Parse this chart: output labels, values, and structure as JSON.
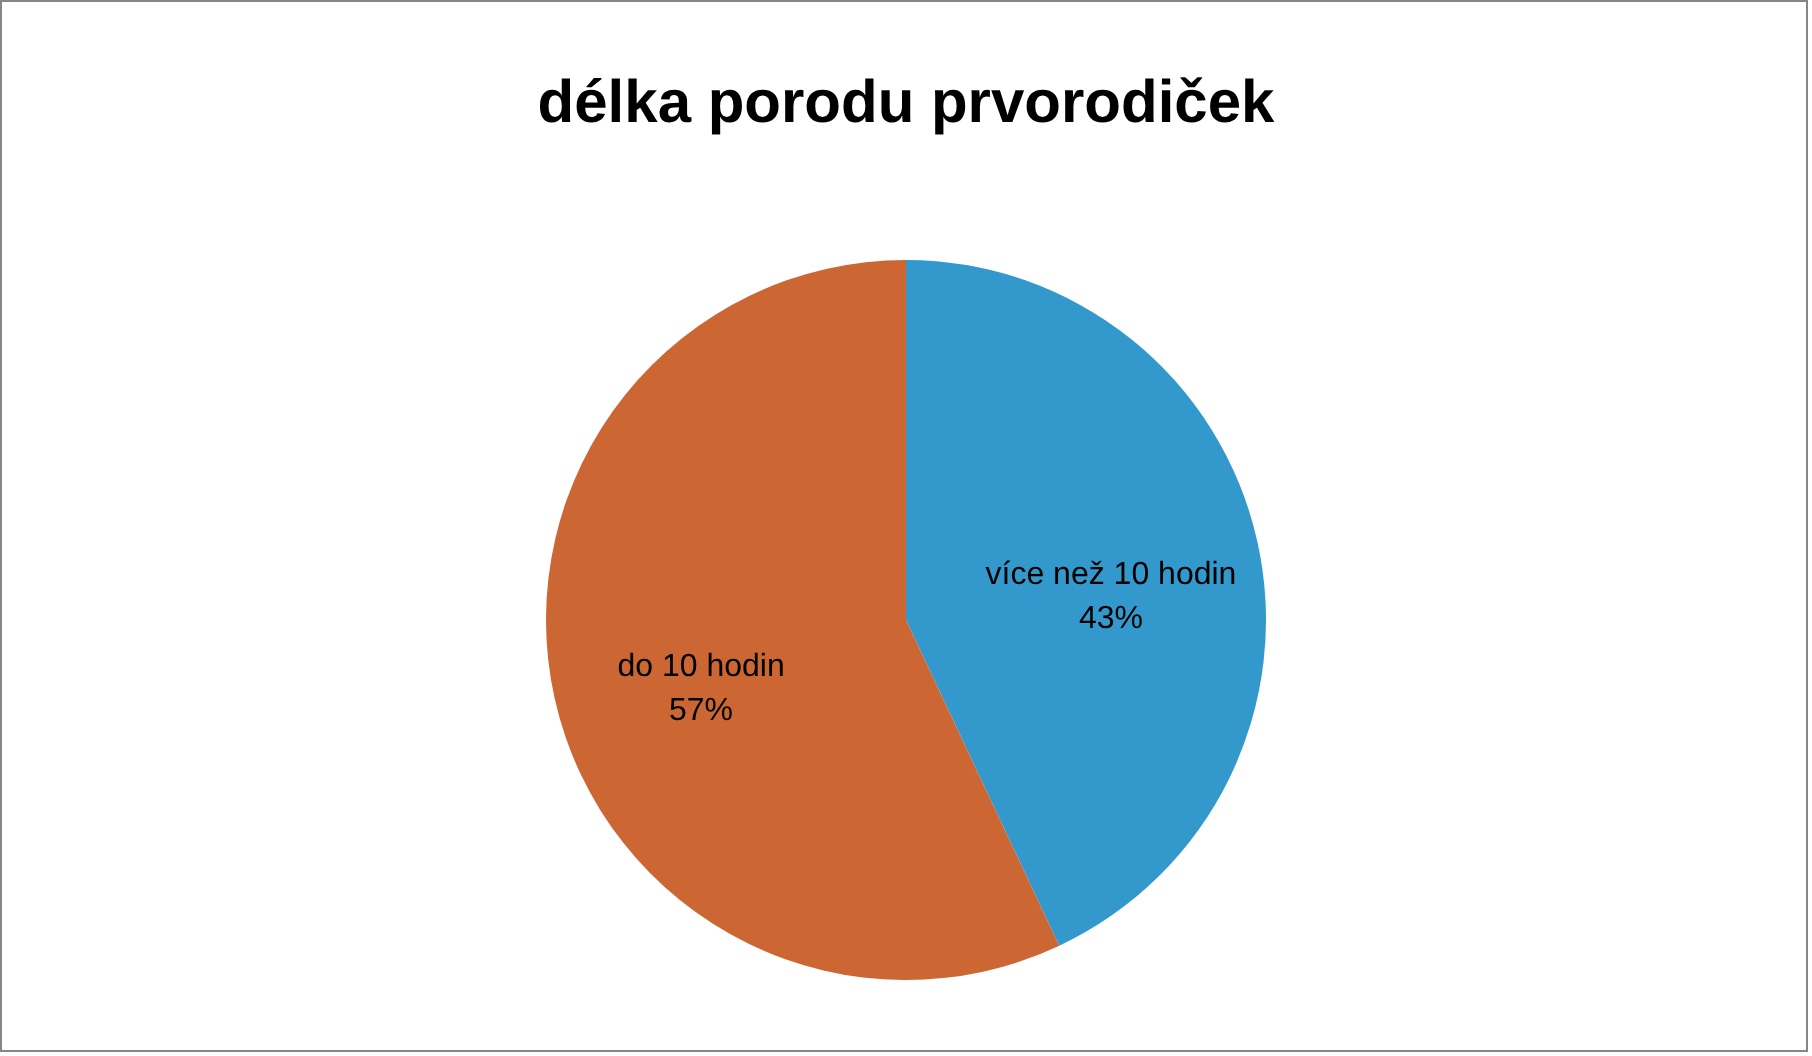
{
  "chart_data": {
    "type": "pie",
    "title": "délka porodu prvorodiček",
    "categories": [
      "více než 10 hodin",
      "do 10 hodin"
    ],
    "values": [
      43,
      57
    ],
    "value_labels": [
      "43%",
      "57%"
    ],
    "colors": [
      "#3399cc",
      "#cc6633"
    ]
  }
}
